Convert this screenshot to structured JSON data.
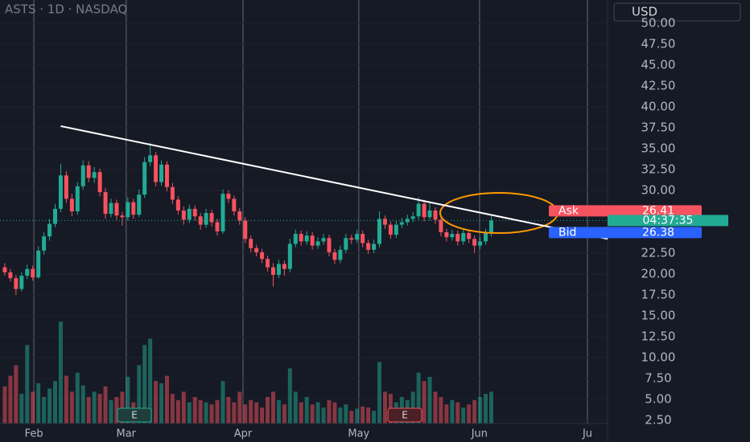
{
  "chart_data": {
    "type": "candlestick",
    "title": "ASTS · 1D · NASDAQ",
    "currency": "USD",
    "xlim": [
      -0.86,
      107.8
    ],
    "xticks": [
      {
        "value": 5.2,
        "label": "Feb"
      },
      {
        "value": 21.7,
        "label": "Mar"
      },
      {
        "value": 42.6,
        "label": "Apr"
      },
      {
        "value": 63.3,
        "label": "May"
      },
      {
        "value": 84.9,
        "label": "Jun"
      },
      {
        "value": 104.2,
        "label": "Ju"
      }
    ],
    "ylim": [
      2.1,
      52.8
    ],
    "yticks": [
      {
        "value": 2.5,
        "label": "2.50"
      },
      {
        "value": 5,
        "label": "5.00"
      },
      {
        "value": 7.5,
        "label": "7.50"
      },
      {
        "value": 10,
        "label": "10.00"
      },
      {
        "value": 12.5,
        "label": "12.50"
      },
      {
        "value": 15,
        "label": "15.00"
      },
      {
        "value": 17.5,
        "label": "17.50"
      },
      {
        "value": 20,
        "label": "20.00"
      },
      {
        "value": 22.5,
        "label": "22.50"
      },
      {
        "value": 30,
        "label": "30.00"
      },
      {
        "value": 32.5,
        "label": "32.50"
      },
      {
        "value": 35,
        "label": "35.00"
      },
      {
        "value": 37.5,
        "label": "37.50"
      },
      {
        "value": 40,
        "label": "40.00"
      },
      {
        "value": 42.5,
        "label": "42.50"
      },
      {
        "value": 45,
        "label": "45.00"
      },
      {
        "value": 47.5,
        "label": "47.50"
      },
      {
        "value": 50,
        "label": "50.00"
      }
    ],
    "up_color": "#22ab94",
    "down_color": "#f7525f",
    "open": [
      20.8,
      20.2,
      19.5,
      18.2,
      19.8,
      20.6,
      19.6,
      22.8,
      24.5,
      26.0,
      27.8,
      31.8,
      29.0,
      27.5,
      30.5,
      33.0,
      31.5,
      32.2,
      29.8,
      27.2,
      28.5,
      27.0,
      26.8,
      28.6,
      27.1,
      29.5,
      33.4,
      34.2,
      31.0,
      33.1,
      30.4,
      28.9,
      27.6,
      26.5,
      27.8,
      26.9,
      25.9,
      27.3,
      26.2,
      25.1,
      29.6,
      29.0,
      27.5,
      26.4,
      24.2,
      23.1,
      22.6,
      21.8,
      20.8,
      19.9,
      21.2,
      20.6,
      23.6,
      24.8,
      23.9,
      24.6,
      23.4,
      23.9,
      24.3,
      22.6,
      21.7,
      22.9,
      24.3,
      24.1,
      24.8,
      23.7,
      22.9,
      23.6,
      26.6,
      25.9,
      24.7,
      25.9,
      26.2,
      26.6,
      26.9,
      28.4,
      26.8,
      27.6,
      26.5,
      25.0,
      24.4,
      24.8,
      23.9,
      24.9,
      24.2,
      23.4,
      23.9,
      24.9
    ],
    "high": [
      21.3,
      20.6,
      19.9,
      20.2,
      21.1,
      21.0,
      23.3,
      25.0,
      26.6,
      28.4,
      33.2,
      32.3,
      29.6,
      31.0,
      33.6,
      33.5,
      32.8,
      32.6,
      30.3,
      29.0,
      28.9,
      27.4,
      29.2,
      29.0,
      30.1,
      34.0,
      35.7,
      34.6,
      33.6,
      33.5,
      30.9,
      29.3,
      28.1,
      28.3,
      28.2,
      27.3,
      27.8,
      27.7,
      26.6,
      30.1,
      30.0,
      29.4,
      27.9,
      26.8,
      24.6,
      23.5,
      23.0,
      22.2,
      21.3,
      21.7,
      21.6,
      24.2,
      25.3,
      25.2,
      25.1,
      25.0,
      24.4,
      24.8,
      24.7,
      23.0,
      23.4,
      24.8,
      24.7,
      25.3,
      25.2,
      24.1,
      24.1,
      27.5,
      27.0,
      26.3,
      26.4,
      26.7,
      27.1,
      27.4,
      29.2,
      28.9,
      28.7,
      28.0,
      26.9,
      25.4,
      25.3,
      25.2,
      25.4,
      25.3,
      24.6,
      24.4,
      25.4,
      26.9
    ],
    "low": [
      19.8,
      19.1,
      17.5,
      17.9,
      19.4,
      19.2,
      19.4,
      22.3,
      24.0,
      25.6,
      27.4,
      28.5,
      26.9,
      27.1,
      30.1,
      31.0,
      30.9,
      29.3,
      26.6,
      26.8,
      26.5,
      25.8,
      26.4,
      26.6,
      26.8,
      29.1,
      32.9,
      30.5,
      30.6,
      29.9,
      28.4,
      27.1,
      25.9,
      26.1,
      26.4,
      25.3,
      25.5,
      25.7,
      24.6,
      24.8,
      28.5,
      27.0,
      25.9,
      23.7,
      22.6,
      22.1,
      21.3,
      20.3,
      18.5,
      19.5,
      19.8,
      20.2,
      23.2,
      23.4,
      23.5,
      22.9,
      23.0,
      23.5,
      22.1,
      21.2,
      21.3,
      22.5,
      23.6,
      23.7,
      23.2,
      22.4,
      22.5,
      23.2,
      25.4,
      24.2,
      24.3,
      25.5,
      25.8,
      26.2,
      26.5,
      26.3,
      26.4,
      26.0,
      24.5,
      23.9,
      24.0,
      23.4,
      23.5,
      23.7,
      22.5,
      23.0,
      23.5,
      24.5
    ],
    "close": [
      20.2,
      19.5,
      18.2,
      19.8,
      20.6,
      19.6,
      22.8,
      24.5,
      26.0,
      27.8,
      31.8,
      29.0,
      27.5,
      30.5,
      33.0,
      31.5,
      32.2,
      29.8,
      27.2,
      28.5,
      27.0,
      26.8,
      28.6,
      27.1,
      29.5,
      33.4,
      34.2,
      31.0,
      33.1,
      30.4,
      28.9,
      27.6,
      26.5,
      27.8,
      26.9,
      25.9,
      27.3,
      26.2,
      25.1,
      29.6,
      29.0,
      27.5,
      26.4,
      24.2,
      23.1,
      22.6,
      21.8,
      20.8,
      19.9,
      21.2,
      20.6,
      23.6,
      24.8,
      23.9,
      24.6,
      23.4,
      23.9,
      24.3,
      22.6,
      21.7,
      22.9,
      24.3,
      24.1,
      24.8,
      23.7,
      22.9,
      23.6,
      26.6,
      25.9,
      24.7,
      25.9,
      26.2,
      26.6,
      26.9,
      28.4,
      26.8,
      27.6,
      26.5,
      25.0,
      24.4,
      24.8,
      23.9,
      24.9,
      24.2,
      23.4,
      23.9,
      24.9,
      26.4
    ],
    "volume_lim": [
      0,
      100
    ],
    "volume": [
      35,
      45,
      55,
      28,
      74,
      30,
      38,
      25,
      33,
      40,
      96,
      45,
      30,
      48,
      36,
      25,
      30,
      28,
      35,
      22,
      25,
      30,
      44,
      20,
      55,
      74,
      80,
      40,
      38,
      45,
      28,
      22,
      30,
      20,
      25,
      22,
      20,
      18,
      22,
      40,
      25,
      20,
      30,
      18,
      22,
      20,
      15,
      25,
      30,
      22,
      18,
      52,
      30,
      20,
      25,
      18,
      20,
      15,
      22,
      20,
      15,
      18,
      12,
      14,
      16,
      15,
      12,
      58,
      30,
      28,
      20,
      25,
      22,
      30,
      48,
      40,
      44,
      30,
      25,
      18,
      22,
      20,
      15,
      18,
      22,
      25,
      28,
      30
    ],
    "trendline": {
      "x": [
        10,
        107.8
      ],
      "y": [
        37.7,
        24.2
      ]
    },
    "ask": {
      "label": "Ask",
      "value": 26.41
    },
    "bid": {
      "label": "Bid",
      "value": 26.38
    },
    "countdown": "04:37:35",
    "earnings_markers": [
      "E",
      "E"
    ]
  }
}
